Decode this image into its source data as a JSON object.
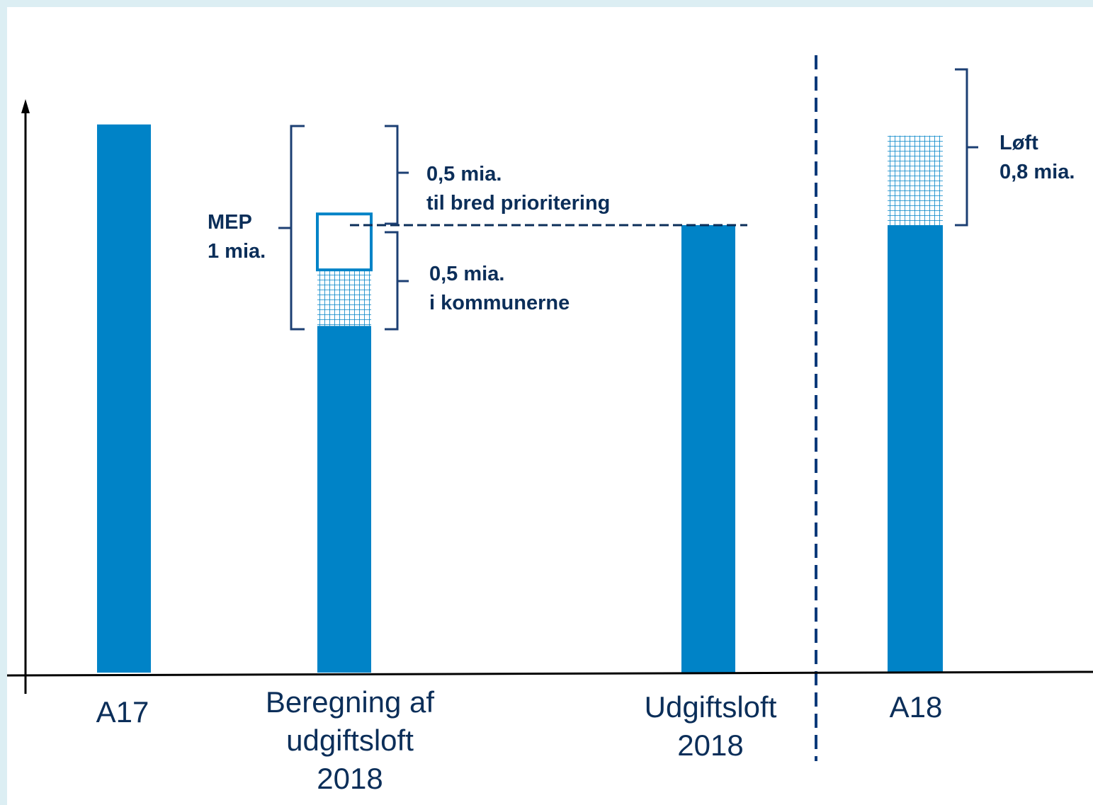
{
  "chart_data": {
    "type": "bar",
    "title": "",
    "xlabel": "",
    "ylabel": "",
    "ylim": [
      0,
      6
    ],
    "categories": [
      "A17",
      "Beregning af\nudgiftsloft\n2018",
      "Udgiftsloft\n2018",
      "A18"
    ],
    "stacks": [
      {
        "category": "A17",
        "segments": [
          {
            "style": "solid",
            "value": 4.9
          }
        ]
      },
      {
        "category": "Beregning af udgiftsloft 2018",
        "segments": [
          {
            "style": "solid",
            "value": 3.1
          },
          {
            "style": "hatched",
            "value": 0.5
          },
          {
            "style": "outline",
            "value": 0.5
          }
        ]
      },
      {
        "category": "Udgiftsloft 2018",
        "segments": [
          {
            "style": "solid",
            "value": 4.0
          }
        ]
      },
      {
        "category": "A18",
        "segments": [
          {
            "style": "solid",
            "value": 4.0
          },
          {
            "style": "hatched",
            "value": 0.8
          }
        ]
      }
    ],
    "annotations": [
      {
        "name": "MEP",
        "text": "MEP\n1 mia."
      },
      {
        "name": "top",
        "text": "0,5 mia.\ntil bred prioritering"
      },
      {
        "name": "kommuner",
        "text": "0,5 mia.\ni kommunerne"
      },
      {
        "name": "loft",
        "text": "Løft\n0,8 mia."
      }
    ],
    "legend": "none",
    "grid": false,
    "colors": {
      "bar": "#0083c7",
      "text": "#0b2e59",
      "bracket": "#1c3f73"
    }
  }
}
